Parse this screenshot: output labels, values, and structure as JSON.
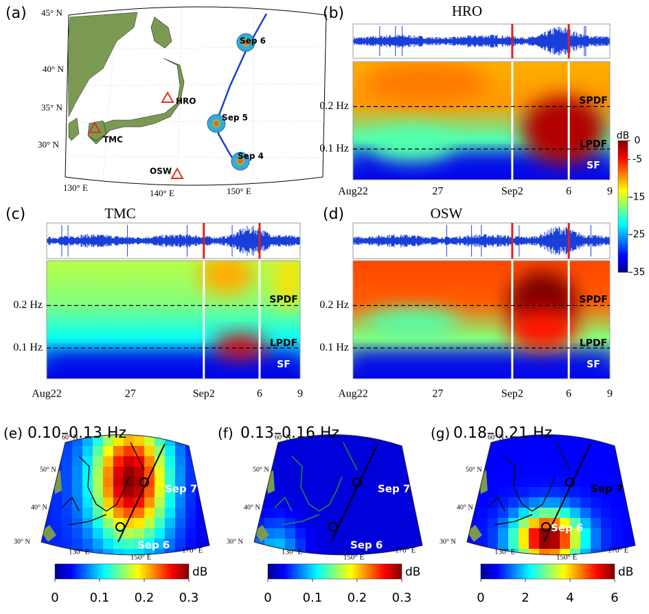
{
  "map_a": {
    "label": "(a)",
    "lat_labels": [
      "45° N",
      "40° N",
      "35° N",
      "30° N"
    ],
    "lon_labels": [
      "130° E",
      "140° E",
      "150° E"
    ],
    "stations": [
      "HRO",
      "TMC",
      "OSW"
    ],
    "typhoon": [
      "Sep 6",
      "Sep 5",
      "Sep 4"
    ]
  },
  "spectrograms": [
    {
      "label": "(b)",
      "title": "HRO",
      "y_labels": [
        "0.2 Hz",
        "0.1 Hz"
      ],
      "x_labels": [
        "Aug22",
        "27",
        "Sep2",
        "6",
        "9"
      ],
      "bands": [
        "SPDF",
        "LPDF",
        "SF"
      ]
    },
    {
      "label": "(c)",
      "title": "TMC",
      "y_labels": [
        "0.2 Hz",
        "0.1 Hz"
      ],
      "x_labels": [
        "Aug22",
        "27",
        "Sep2",
        "6",
        "9"
      ],
      "bands": [
        "SPDF",
        "LPDF",
        "SF"
      ]
    },
    {
      "label": "(d)",
      "title": "OSW",
      "y_labels": [
        "0.2 Hz",
        "0.1 Hz"
      ],
      "x_labels": [
        "Aug22",
        "27",
        "Sep2",
        "6",
        "9"
      ],
      "bands": [
        "SPDF",
        "LPDF",
        "SF"
      ]
    }
  ],
  "spectrogram_colorbar": {
    "unit": "dB",
    "lim": [
      -35,
      0
    ],
    "ticks": [
      0,
      -5,
      -15,
      -25,
      -35
    ]
  },
  "maps": [
    {
      "label": "(e)",
      "title": "0.10–0.13 Hz",
      "lat_labels": [
        "60° N",
        "50° N",
        "40° N",
        "30° N"
      ],
      "lon_labels": [
        "130° E",
        "150° E",
        "170° E"
      ],
      "track": [
        "Sep 7",
        "Sep 6"
      ],
      "colorbar": {
        "unit": "dB",
        "lim": [
          0,
          0.3
        ],
        "ticks": [
          0,
          0.1,
          0.2,
          0.3
        ]
      }
    },
    {
      "label": "(f)",
      "title": "0.13–0.16 Hz",
      "lat_labels": [
        "60° N",
        "50° N",
        "40° N",
        "30° N"
      ],
      "lon_labels": [
        "130° E",
        "150° E",
        "170° E"
      ],
      "track": [
        "Sep 7",
        "Sep 6"
      ],
      "colorbar": {
        "unit": "dB",
        "lim": [
          0,
          0.3
        ],
        "ticks": [
          0,
          0.1,
          0.2,
          0.3
        ]
      }
    },
    {
      "label": "(g)",
      "title": "0.18–0.21 Hz",
      "lat_labels": [
        "60° N",
        "50° N",
        "40° N",
        "30° N"
      ],
      "lon_labels": [
        "130° E",
        "150° E",
        "170° E"
      ],
      "track": [
        "Sep 7",
        "Sep 6"
      ],
      "colorbar": {
        "unit": "dB",
        "lim": [
          0,
          6
        ],
        "ticks": [
          0,
          2,
          4,
          6
        ]
      }
    }
  ]
}
